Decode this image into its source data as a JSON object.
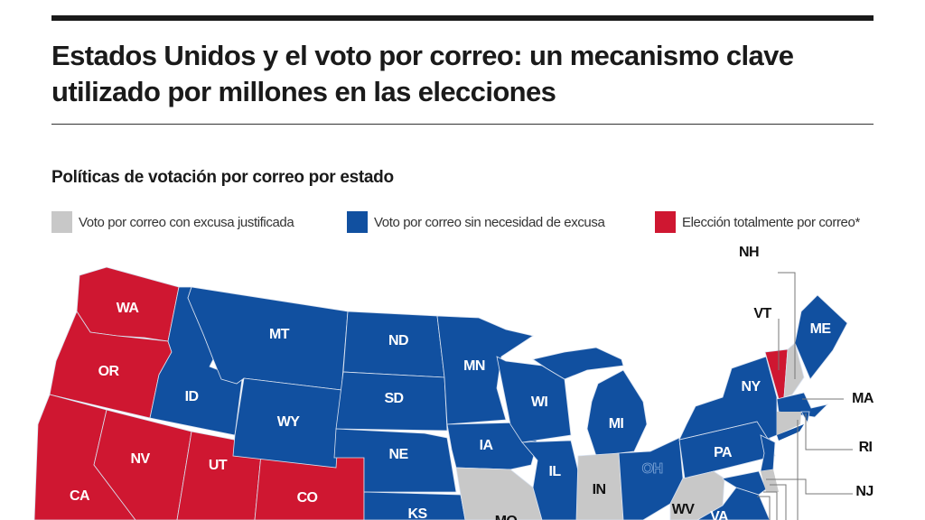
{
  "title": "Estados Unidos y el voto por correo: un mecanismo clave utilizado por millones en las elecciones",
  "subtitle": "Políticas de votación por correo por estado",
  "colors": {
    "excuse": "#c8c8c8",
    "no_excuse": "#1150a0",
    "all_mail": "#cf1731"
  },
  "legend": [
    {
      "key": "excuse",
      "label": "Voto por correo con excusa justificada",
      "color": "#c8c8c8"
    },
    {
      "key": "no_excuse",
      "label": "Voto por correo sin necesidad de excusa",
      "color": "#1150a0"
    },
    {
      "key": "all_mail",
      "label": "Elección totalmente por correo*",
      "color": "#cf1731"
    }
  ],
  "states": [
    {
      "abbr": "WA",
      "category": "all_mail"
    },
    {
      "abbr": "OR",
      "category": "all_mail"
    },
    {
      "abbr": "CA",
      "category": "all_mail"
    },
    {
      "abbr": "NV",
      "category": "all_mail"
    },
    {
      "abbr": "UT",
      "category": "all_mail"
    },
    {
      "abbr": "CO",
      "category": "all_mail"
    },
    {
      "abbr": "ID",
      "category": "no_excuse"
    },
    {
      "abbr": "MT",
      "category": "no_excuse"
    },
    {
      "abbr": "WY",
      "category": "no_excuse"
    },
    {
      "abbr": "ND",
      "category": "no_excuse"
    },
    {
      "abbr": "SD",
      "category": "no_excuse"
    },
    {
      "abbr": "NE",
      "category": "no_excuse"
    },
    {
      "abbr": "KS",
      "category": "no_excuse"
    },
    {
      "abbr": "MN",
      "category": "no_excuse"
    },
    {
      "abbr": "IA",
      "category": "no_excuse"
    },
    {
      "abbr": "MO",
      "category": "excuse"
    },
    {
      "abbr": "WI",
      "category": "no_excuse"
    },
    {
      "abbr": "IL",
      "category": "no_excuse"
    },
    {
      "abbr": "MI",
      "category": "no_excuse"
    },
    {
      "abbr": "IN",
      "category": "excuse"
    },
    {
      "abbr": "OH",
      "category": "no_excuse"
    },
    {
      "abbr": "PA",
      "category": "no_excuse"
    },
    {
      "abbr": "WV",
      "category": "excuse"
    },
    {
      "abbr": "VA",
      "category": "no_excuse"
    },
    {
      "abbr": "NY",
      "category": "no_excuse"
    },
    {
      "abbr": "VT",
      "category": "all_mail"
    },
    {
      "abbr": "NH",
      "category": "excuse"
    },
    {
      "abbr": "ME",
      "category": "no_excuse"
    },
    {
      "abbr": "MA",
      "category": "no_excuse"
    },
    {
      "abbr": "RI",
      "category": "no_excuse"
    },
    {
      "abbr": "NJ",
      "category": "no_excuse"
    }
  ]
}
